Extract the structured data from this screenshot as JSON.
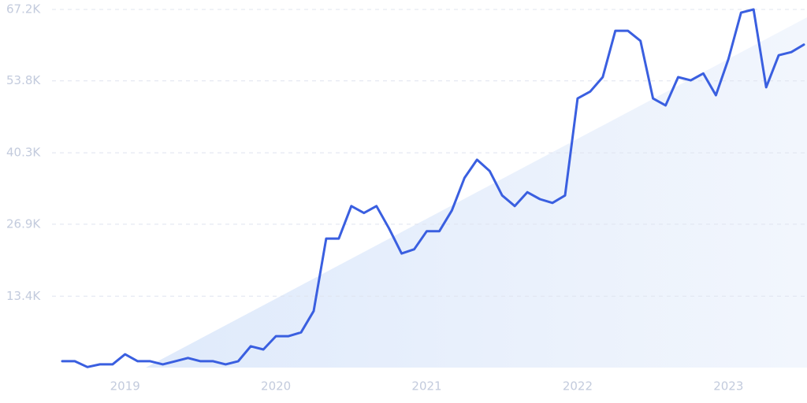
{
  "chart_data": {
    "type": "line",
    "categories": [
      null,
      null,
      null,
      null,
      null,
      "2019",
      null,
      null,
      null,
      null,
      null,
      null,
      null,
      null,
      null,
      null,
      null,
      "2020",
      null,
      null,
      null,
      null,
      null,
      null,
      null,
      null,
      null,
      null,
      null,
      "2021",
      null,
      null,
      null,
      null,
      null,
      null,
      null,
      null,
      null,
      null,
      null,
      "2022",
      null,
      null,
      null,
      null,
      null,
      null,
      null,
      null,
      null,
      null,
      null,
      "2023",
      null,
      null,
      null,
      null,
      null,
      null
    ],
    "series": [
      {
        "color": "#3a5fe0",
        "values": [
          1200,
          1200,
          100,
          600,
          600,
          2500,
          1200,
          1200,
          600,
          1200,
          1800,
          1200,
          1200,
          600,
          1200,
          4000,
          3400,
          5900,
          5900,
          6600,
          10600,
          24200,
          24200,
          30300,
          29000,
          30300,
          26100,
          21400,
          22200,
          25600,
          25600,
          29500,
          35600,
          39000,
          36900,
          32300,
          30300,
          32900,
          31600,
          30900,
          32300,
          50500,
          51800,
          54500,
          63200,
          63200,
          61300,
          50500,
          49200,
          54500,
          53900,
          55200,
          51100,
          57900,
          66600,
          67200,
          52600,
          58600,
          59200,
          60600
        ]
      }
    ],
    "ylim": [
      0,
      67200
    ],
    "yticks": [
      {
        "value": 13400,
        "label": "13.4K"
      },
      {
        "value": 26900,
        "label": "26.9K"
      },
      {
        "value": 40300,
        "label": "40.3K"
      },
      {
        "value": 53800,
        "label": "53.8K"
      },
      {
        "value": 67200,
        "label": "67.2K"
      }
    ],
    "grid": true
  }
}
